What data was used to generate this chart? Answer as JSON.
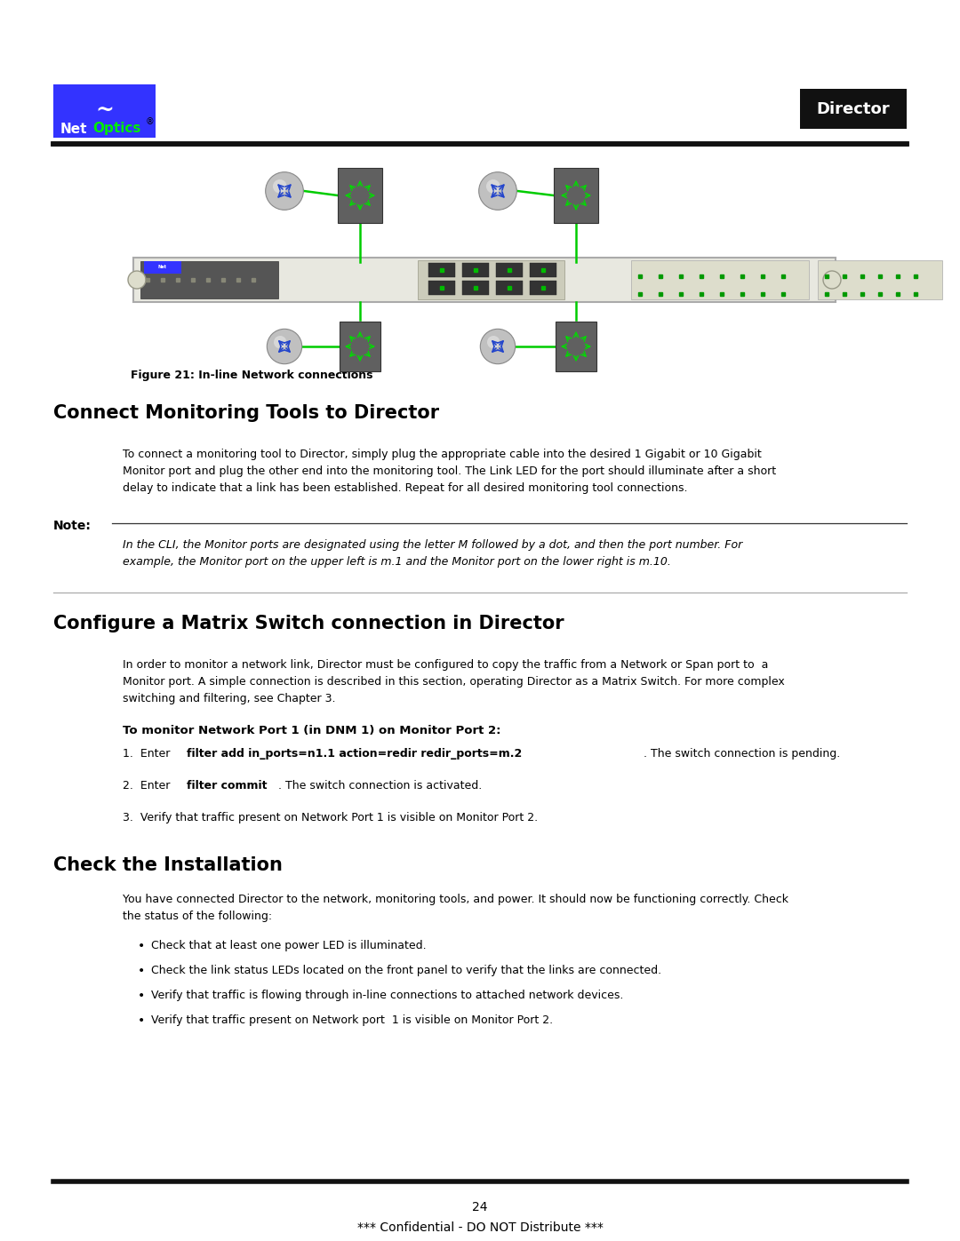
{
  "bg_color": "#ffffff",
  "page_width": 10.8,
  "page_height": 13.97,
  "dpi": 100,
  "header": {
    "logo_bg": "#3333ff",
    "logo_wave_color": "#ffffff",
    "logo_optics_color": "#00ee00",
    "logo_net_color": "#ffffff",
    "logo_registered": "®",
    "director_label": "Director",
    "director_bg": "#111111",
    "director_text_color": "#ffffff",
    "header_line_color": "#111111"
  },
  "figure_caption": "Figure 21: In-line Network connections",
  "section1_title": "Connect Monitoring Tools to Director",
  "section1_body": "To connect a monitoring tool to Director, simply plug the appropriate cable into the desired 1 Gigabit or 10 Gigabit\nMonitor port and plug the other end into the monitoring tool. The Link LED for the port should illuminate after a short\ndelay to indicate that a link has been established. Repeat for all desired monitoring tool connections.",
  "note_label": "Note:",
  "note_body": "In the CLI, the Monitor ports are designated using the letter M followed by a dot, and then the port number. For\nexample, the Monitor port on the upper left is m.1 and the Monitor port on the lower right is m.10.",
  "section_divider_color": "#aaaaaa",
  "section2_title": "Configure a Matrix Switch connection in Director",
  "section2_body": "In order to monitor a network link, Director must be configured to copy the traffic from a Network or Span port to  a\nMonitor port. A simple connection is described in this section, operating Director as a Matrix Switch. For more complex\nswitching and filtering, see Chapter 3.",
  "subsection_title": "To monitor Network Port 1 (in DNM 1) on Monitor Port 2:",
  "section3_title": "Check the Installation",
  "section3_body": "You have connected Director to the network, monitoring tools, and power. It should now be functioning correctly. Check\nthe status of the following:",
  "bullets": [
    "Check that at least one power LED is illuminated.",
    "Check the link status LEDs located on the front panel to verify that the links are connected.",
    "Verify that traffic is flowing through in-line connections to attached network devices.",
    "Verify that traffic present on Network port  1 is visible on Monitor Port 2."
  ],
  "footer_line_color": "#111111",
  "page_number": "24",
  "footer_text": "*** Confidential - DO NOT Distribute ***"
}
